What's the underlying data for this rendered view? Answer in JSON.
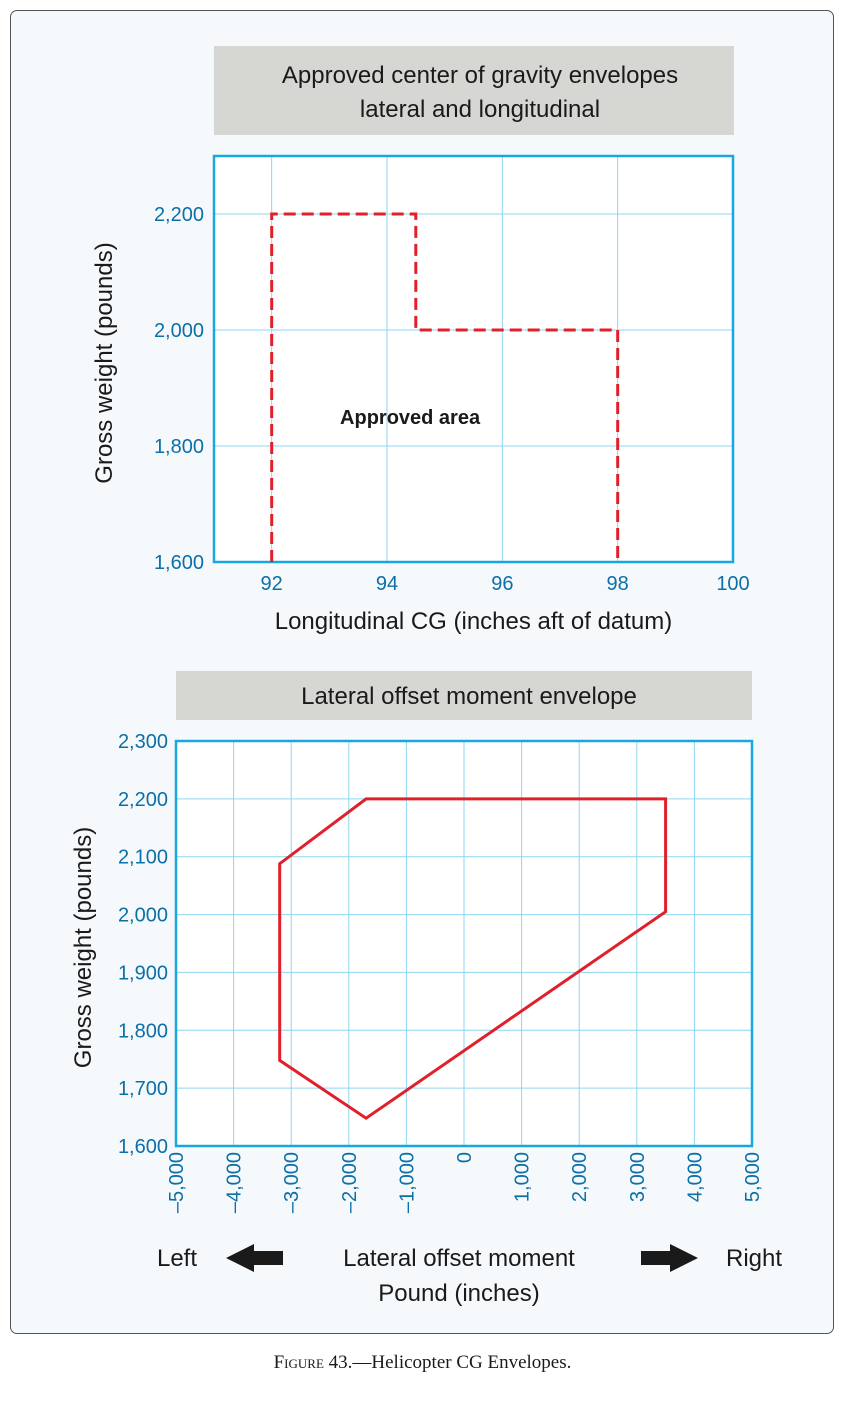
{
  "caption": {
    "figure_label": "Figure 43.",
    "text": "—Helicopter CG Envelopes."
  },
  "colors": {
    "axis": "#1aa7df",
    "grid": "#8fd6f0",
    "envelope": "#e0202a",
    "tick_text": "#0b6fa8",
    "title_box": "#d6d6d3"
  },
  "chart_data": [
    {
      "type": "line",
      "title_lines": [
        "Approved center of gravity envelopes",
        "lateral and longitudinal"
      ],
      "xlabel": "Longitudinal CG (inches aft of datum)",
      "ylabel": "Gross weight (pounds)",
      "xlim": [
        91,
        100
      ],
      "ylim": [
        1600,
        2300
      ],
      "x_ticks": [
        92,
        94,
        96,
        98,
        100
      ],
      "x_tick_labels": [
        "92",
        "94",
        "96",
        "98",
        "100"
      ],
      "y_ticks": [
        1600,
        1800,
        2000,
        2200
      ],
      "y_tick_labels": [
        "1,600",
        "1,800",
        "2,000",
        "2,200"
      ],
      "x_grid": [
        92,
        94,
        96,
        98,
        100
      ],
      "y_grid": [
        1800,
        2000,
        2200
      ],
      "grid": true,
      "annotation": {
        "text": "Approved area",
        "x": 94.4,
        "y": 1838
      },
      "series": [
        {
          "line_style": "dashed",
          "points": [
            [
              92,
              1600
            ],
            [
              92,
              2200
            ],
            [
              94.5,
              2200
            ],
            [
              94.5,
              2000
            ],
            [
              98,
              2000
            ],
            [
              98,
              1600
            ]
          ]
        }
      ]
    },
    {
      "type": "line",
      "title_lines": [
        "Lateral offset moment envelope"
      ],
      "xlabel_lines": [
        "Lateral offset moment",
        "Pound (inches)"
      ],
      "ylabel": "Gross weight (pounds)",
      "left_label": "Left",
      "right_label": "Right",
      "xlim": [
        -5000,
        5000
      ],
      "ylim": [
        1600,
        2300
      ],
      "x_ticks": [
        -5000,
        -4000,
        -3000,
        -2000,
        -1000,
        0,
        1000,
        2000,
        3000,
        4000,
        5000
      ],
      "x_tick_labels": [
        "–5,000",
        "–4,000",
        "–3,000",
        "–2,000",
        "–1,000",
        "0",
        "1,000",
        "2,000",
        "3,000",
        "4,000",
        "5,000"
      ],
      "y_ticks": [
        1600,
        1700,
        1800,
        1900,
        2000,
        2100,
        2200,
        2300
      ],
      "y_tick_labels": [
        "1,600",
        "1,700",
        "1,800",
        "1,900",
        "2,000",
        "2,100",
        "2,200",
        "2,300"
      ],
      "x_grid": [
        -4000,
        -3000,
        -2000,
        -1000,
        0,
        1000,
        2000,
        3000,
        4000
      ],
      "y_grid": [
        1700,
        1800,
        1900,
        2000,
        2100,
        2200
      ],
      "grid": true,
      "series": [
        {
          "line_style": "solid",
          "closed": true,
          "points": [
            [
              -1700,
              2200
            ],
            [
              3500,
              2200
            ],
            [
              3500,
              2005
            ],
            [
              -1700,
              1648
            ],
            [
              -3200,
              1748
            ],
            [
              -3200,
              2088
            ]
          ]
        }
      ]
    }
  ]
}
